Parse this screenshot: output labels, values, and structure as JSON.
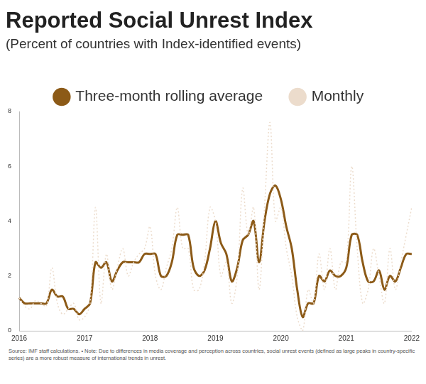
{
  "chart_data": {
    "type": "line",
    "title": "Reported Social Unrest Index",
    "subtitle": "(Percent of countries with Index-identified events)",
    "source": "Source: IMF staff calculations. • Note: Due to differences in media coverage and perception across countries, social unrest events (defined as large peaks in country-specific series) are a more robust measure of international trends in unrest.",
    "categories": [
      "2016",
      null,
      null,
      null,
      null,
      null,
      null,
      null,
      null,
      null,
      null,
      null,
      "2017",
      null,
      null,
      null,
      null,
      null,
      null,
      null,
      null,
      null,
      null,
      null,
      "2018",
      null,
      null,
      null,
      null,
      null,
      null,
      null,
      null,
      null,
      null,
      null,
      "2019",
      null,
      null,
      null,
      null,
      null,
      null,
      null,
      null,
      null,
      null,
      null,
      "2020",
      null,
      null,
      null,
      null,
      null,
      null,
      null,
      null,
      null,
      null,
      null,
      "2021",
      null,
      null,
      null,
      null,
      null,
      null,
      null,
      null,
      null,
      null,
      null,
      "2022"
    ],
    "series": [
      {
        "name": "Three-month rolling average",
        "color": "#8c5a17",
        "line_style": "solid",
        "values": [
          1.2,
          1.0,
          1.0,
          1.0,
          1.0,
          1.0,
          1.5,
          1.25,
          1.25,
          0.8,
          0.8,
          0.6,
          0.8,
          1.0,
          2.5,
          2.3,
          2.5,
          1.8,
          2.2,
          2.5,
          2.5,
          2.5,
          2.5,
          2.8,
          2.8,
          2.8,
          2.0,
          2.0,
          2.5,
          3.5,
          3.5,
          3.5,
          2.3,
          2.0,
          2.2,
          3.0,
          4.0,
          3.2,
          2.8,
          1.8,
          2.3,
          3.3,
          3.5,
          4.0,
          2.5,
          4.0,
          5.0,
          5.3,
          4.8,
          3.8,
          3.0,
          1.5,
          0.5,
          1.0,
          1.0,
          2.0,
          1.8,
          2.2,
          2.0,
          2.0,
          2.3,
          3.5,
          3.5,
          2.5,
          1.8,
          1.8,
          2.2,
          1.5,
          2.0,
          1.8,
          2.3,
          2.8,
          2.8
        ]
      },
      {
        "name": "Monthly",
        "color": "#ecdccc",
        "line_style": "dotted",
        "values": [
          1.2,
          0.9,
          0.8,
          1.1,
          1.0,
          0.9,
          2.3,
          1.0,
          0.6,
          0.8,
          1.0,
          0.4,
          0.5,
          1.0,
          4.5,
          1.0,
          2.8,
          1.5,
          2.3,
          3.0,
          2.0,
          2.5,
          2.8,
          3.0,
          3.8,
          2.0,
          1.5,
          2.3,
          3.0,
          4.5,
          3.0,
          3.0,
          1.5,
          1.5,
          2.5,
          4.5,
          4.0,
          2.0,
          2.5,
          1.0,
          2.0,
          5.2,
          3.5,
          4.5,
          1.5,
          4.5,
          7.6,
          4.0,
          4.5,
          3.0,
          2.0,
          0.5,
          0.0,
          1.5,
          1.0,
          2.8,
          1.5,
          3.0,
          1.5,
          2.5,
          2.5,
          6.0,
          3.0,
          1.0,
          1.5,
          3.0,
          2.0,
          1.0,
          3.0,
          1.5,
          2.5,
          3.5,
          4.5
        ]
      }
    ],
    "ylim": [
      0,
      8
    ],
    "yticks": [
      0,
      2,
      4,
      6,
      8
    ],
    "grid": false,
    "legend": "top"
  }
}
